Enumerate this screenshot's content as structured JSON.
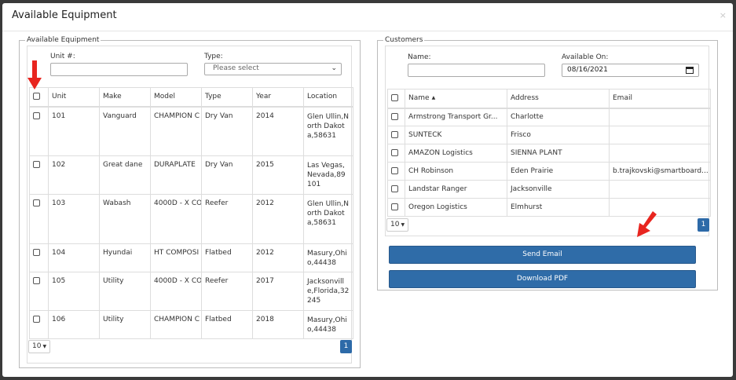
{
  "modal": {
    "title": "Available Equipment",
    "close_label": "×"
  },
  "equipment": {
    "legend": "Available Equipment",
    "unit_label": "Unit #:",
    "unit_value": "",
    "type_label": "Type:",
    "type_placeholder": "Please select",
    "columns": [
      "Unit",
      "Make",
      "Model",
      "Type",
      "Year",
      "Location"
    ],
    "rows": [
      {
        "unit": "101",
        "make": "Vanguard",
        "model": "CHAMPION C",
        "type": "Dry Van",
        "year": "2014",
        "location": "Glen Ullin,North Dakota,58631"
      },
      {
        "unit": "102",
        "make": "Great dane",
        "model": "DURAPLATE",
        "type": "Dry Van",
        "year": "2015",
        "location": "Las Vegas,Nevada,89101"
      },
      {
        "unit": "103",
        "make": "Wabash",
        "model": "4000D - X CO",
        "type": "Reefer",
        "year": "2012",
        "location": "Glen Ullin,North Dakota,58631"
      },
      {
        "unit": "104",
        "make": "Hyundai",
        "model": "HT COMPOSI",
        "type": "Flatbed",
        "year": "2012",
        "location": "Masury,Ohio,44438"
      },
      {
        "unit": "105",
        "make": "Utility",
        "model": "4000D - X CO",
        "type": "Reefer",
        "year": "2017",
        "location": "Jacksonville,Florida,32245"
      },
      {
        "unit": "106",
        "make": "Utility",
        "model": "CHAMPION C",
        "type": "Flatbed",
        "year": "2018",
        "location": "Masury,Ohio,44438"
      }
    ],
    "page_size": "10",
    "page": "1"
  },
  "customers": {
    "legend": "Customers",
    "name_label": "Name:",
    "name_value": "",
    "available_label": "Available On:",
    "available_value": "08/16/2021",
    "columns": [
      "Name",
      "Address",
      "Email"
    ],
    "rows": [
      {
        "name": "Armstrong Transport Gr...",
        "address": "Charlotte",
        "email": ""
      },
      {
        "name": "SUNTECK",
        "address": "Frisco",
        "email": ""
      },
      {
        "name": "AMAZON Logistics",
        "address": "SIENNA PLANT",
        "email": ""
      },
      {
        "name": "CH Robinson",
        "address": "Eden Prairie",
        "email": "b.trajkovski@smartboard..."
      },
      {
        "name": "Landstar Ranger",
        "address": "Jacksonville",
        "email": ""
      },
      {
        "name": "Oregon Logistics",
        "address": "Elmhurst",
        "email": ""
      }
    ],
    "page_size": "10",
    "page": "1"
  },
  "actions": {
    "send_email": "Send Email",
    "download_pdf": "Download PDF"
  },
  "colors": {
    "primary": "#2f6ca8",
    "arrow": "#e8251f"
  }
}
